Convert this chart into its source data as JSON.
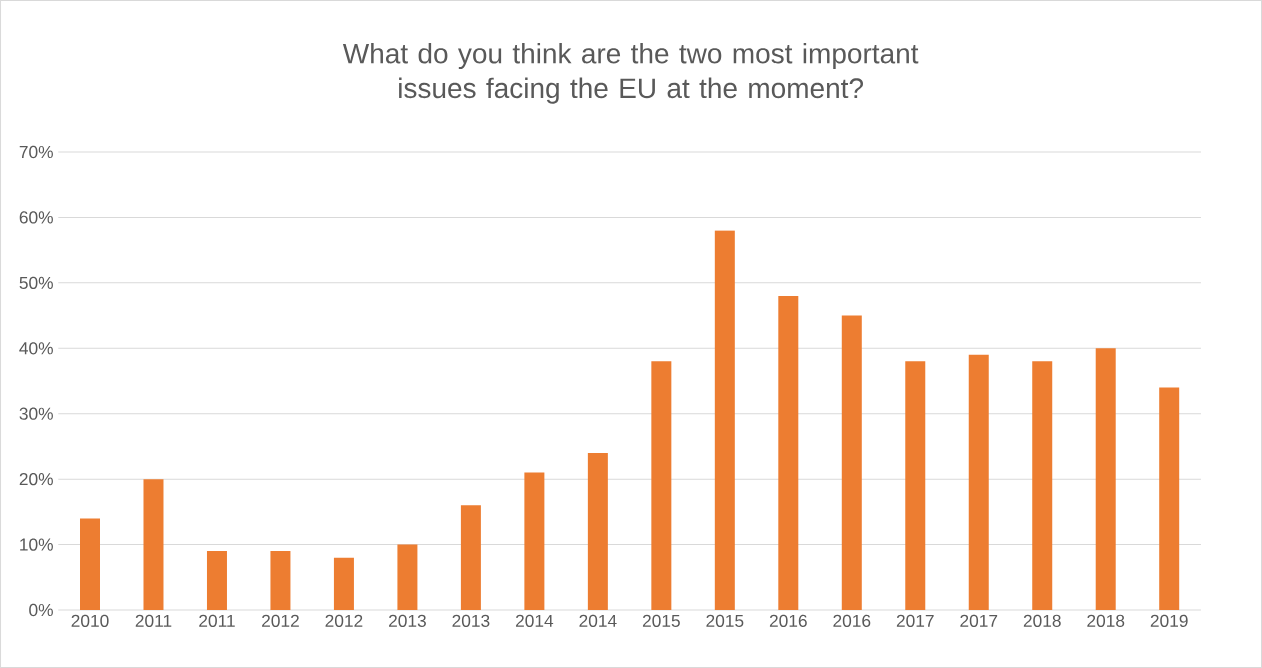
{
  "chart_data": {
    "type": "bar",
    "title": "What do you think are the two most important issues facing the EU at the moment?",
    "categories": [
      "2010",
      "2011",
      "2011",
      "2012",
      "2012",
      "2013",
      "2013",
      "2014",
      "2014",
      "2015",
      "2015",
      "2016",
      "2016",
      "2017",
      "2017",
      "2018",
      "2018",
      "2019"
    ],
    "values": [
      14,
      20,
      9,
      9,
      8,
      10,
      16,
      21,
      24,
      38,
      58,
      48,
      45,
      38,
      39,
      38,
      40,
      34
    ],
    "color": "#ed7d31",
    "ylim": [
      0,
      70
    ],
    "yticks": [
      {
        "value": 0,
        "label": "0%"
      },
      {
        "value": 10,
        "label": "10%"
      },
      {
        "value": 20,
        "label": "20%"
      },
      {
        "value": 30,
        "label": "30%"
      },
      {
        "value": 40,
        "label": "40%"
      },
      {
        "value": 50,
        "label": "50%"
      },
      {
        "value": 60,
        "label": "60%"
      },
      {
        "value": 70,
        "label": "70%"
      }
    ],
    "grid": "y"
  }
}
